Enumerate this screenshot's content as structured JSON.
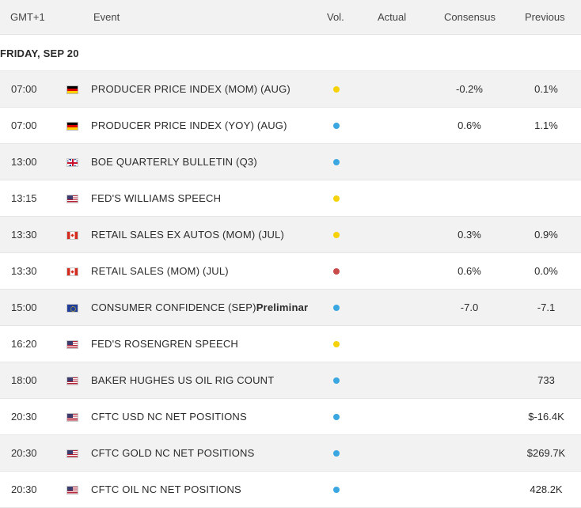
{
  "header": {
    "gmt": "GMT+1",
    "event": "Event",
    "vol": "Vol.",
    "actual": "Actual",
    "consensus": "Consensus",
    "previous": "Previous"
  },
  "date_label": "FRIDAY, SEP 20",
  "colors": {
    "vol_medium": "#f5d20a",
    "vol_low": "#3ba7e0",
    "vol_high": "#c94a4a"
  },
  "rows": [
    {
      "time": "07:00",
      "flag": "germany-flag",
      "event": "PRODUCER PRICE INDEX (MOM) (AUG)",
      "event_extra": "",
      "vol": "medium",
      "actual": "",
      "consensus": "-0.2%",
      "previous": "0.1%"
    },
    {
      "time": "07:00",
      "flag": "germany-flag",
      "event": "PRODUCER PRICE INDEX (YOY) (AUG)",
      "event_extra": "",
      "vol": "low",
      "actual": "",
      "consensus": "0.6%",
      "previous": "1.1%"
    },
    {
      "time": "13:00",
      "flag": "uk-flag",
      "event": "BOE QUARTERLY BULLETIN (Q3)",
      "event_extra": "",
      "vol": "low",
      "actual": "",
      "consensus": "",
      "previous": ""
    },
    {
      "time": "13:15",
      "flag": "us-flag",
      "event": "FED'S WILLIAMS SPEECH",
      "event_extra": "",
      "vol": "medium",
      "actual": "",
      "consensus": "",
      "previous": ""
    },
    {
      "time": "13:30",
      "flag": "canada-flag",
      "event": "RETAIL SALES EX AUTOS (MOM) (JUL)",
      "event_extra": "",
      "vol": "medium",
      "actual": "",
      "consensus": "0.3%",
      "previous": "0.9%"
    },
    {
      "time": "13:30",
      "flag": "canada-flag",
      "event": "RETAIL SALES (MOM) (JUL)",
      "event_extra": "",
      "vol": "high",
      "actual": "",
      "consensus": "0.6%",
      "previous": "0.0%"
    },
    {
      "time": "15:00",
      "flag": "eu-flag",
      "event": "CONSUMER CONFIDENCE (SEP)",
      "event_extra": "Preliminar",
      "vol": "low",
      "actual": "",
      "consensus": "-7.0",
      "previous": "-7.1"
    },
    {
      "time": "16:20",
      "flag": "us-flag",
      "event": "FED'S ROSENGREN SPEECH",
      "event_extra": "",
      "vol": "medium",
      "actual": "",
      "consensus": "",
      "previous": ""
    },
    {
      "time": "18:00",
      "flag": "us-flag",
      "event": "BAKER HUGHES US OIL RIG COUNT",
      "event_extra": "",
      "vol": "low",
      "actual": "",
      "consensus": "",
      "previous": "733"
    },
    {
      "time": "20:30",
      "flag": "us-flag",
      "event": "CFTC USD NC NET POSITIONS",
      "event_extra": "",
      "vol": "low",
      "actual": "",
      "consensus": "",
      "previous": "$-16.4K"
    },
    {
      "time": "20:30",
      "flag": "us-flag",
      "event": "CFTC GOLD NC NET POSITIONS",
      "event_extra": "",
      "vol": "low",
      "actual": "",
      "consensus": "",
      "previous": "$269.7K"
    },
    {
      "time": "20:30",
      "flag": "us-flag",
      "event": "CFTC OIL NC NET POSITIONS",
      "event_extra": "",
      "vol": "low",
      "actual": "",
      "consensus": "",
      "previous": "428.2K"
    }
  ]
}
